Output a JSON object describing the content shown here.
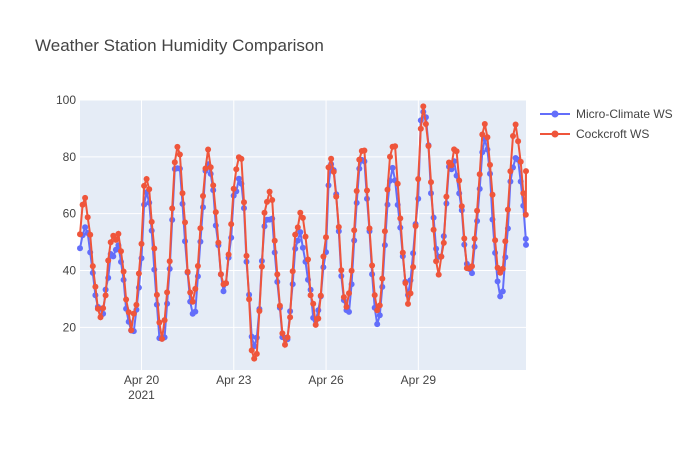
{
  "chart_data": {
    "type": "line",
    "title": "Weather Station Humidity Comparison",
    "xlabel": "",
    "ylabel": "",
    "x_start": "2021-04-18",
    "x_end": "2021-05-01 12:00",
    "xlim_days": [
      0,
      14.5
    ],
    "ylim": [
      5,
      100
    ],
    "y_ticks": [
      20,
      40,
      60,
      80,
      100
    ],
    "x_ticks": [
      {
        "day": 2,
        "label": "Apr 20",
        "sublabel": "2021"
      },
      {
        "day": 5,
        "label": "Apr 23",
        "sublabel": ""
      },
      {
        "day": 8,
        "label": "Apr 26",
        "sublabel": ""
      },
      {
        "day": 11,
        "label": "Apr 29",
        "sublabel": ""
      }
    ],
    "grid": true,
    "legend_position": "top-right",
    "series": [
      {
        "name": "Micro-Climate WS",
        "color": "#636efa",
        "daily": [
          {
            "day": 0,
            "min": 26,
            "max": 57
          },
          {
            "day": 1,
            "min": 20,
            "max": 48
          },
          {
            "day": 2,
            "min": 13,
            "max": 69
          },
          {
            "day": 3,
            "min": 20,
            "max": 78
          },
          {
            "day": 4,
            "min": 40,
            "max": 76
          },
          {
            "day": 5,
            "min": 15,
            "max": 75
          },
          {
            "day": 6,
            "min": 13,
            "max": 60
          },
          {
            "day": 7,
            "min": 22,
            "max": 50
          },
          {
            "day": 8,
            "min": 25,
            "max": 76
          },
          {
            "day": 9,
            "min": 21,
            "max": 80
          },
          {
            "day": 10,
            "min": 30,
            "max": 73
          },
          {
            "day": 11,
            "min": 43,
            "max": 96
          },
          {
            "day": 12,
            "min": 42,
            "max": 77
          },
          {
            "day": 13,
            "min": 30,
            "max": 84
          },
          {
            "day": 14,
            "min": 36,
            "max": 82
          }
        ],
        "end_value": 49
      },
      {
        "name": "Cockcroft WS",
        "color": "#ef553b",
        "daily": [
          {
            "day": 0,
            "min": 24,
            "max": 64
          },
          {
            "day": 1,
            "min": 22,
            "max": 52
          },
          {
            "day": 2,
            "min": 17,
            "max": 71
          },
          {
            "day": 3,
            "min": 24,
            "max": 82
          },
          {
            "day": 4,
            "min": 42,
            "max": 80
          },
          {
            "day": 5,
            "min": 8,
            "max": 83
          },
          {
            "day": 6,
            "min": 11,
            "max": 66
          },
          {
            "day": 7,
            "min": 22,
            "max": 59
          },
          {
            "day": 8,
            "min": 28,
            "max": 78
          },
          {
            "day": 9,
            "min": 26,
            "max": 84
          },
          {
            "day": 10,
            "min": 27,
            "max": 84
          },
          {
            "day": 11,
            "min": 40,
            "max": 97
          },
          {
            "day": 12,
            "min": 40,
            "max": 82
          },
          {
            "day": 13,
            "min": 38,
            "max": 90
          },
          {
            "day": 14,
            "min": 45,
            "max": 90
          }
        ],
        "end_value": 75
      }
    ]
  }
}
